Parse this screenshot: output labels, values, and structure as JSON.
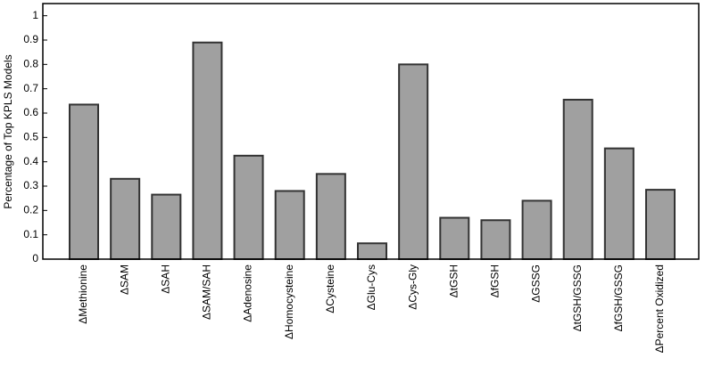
{
  "chart_data": {
    "type": "bar",
    "y_label": "Percentage of Top KPLS Models",
    "categories": [
      "ΔMethionine",
      "ΔSAM",
      "ΔSAH",
      "ΔSAM/SAH",
      "ΔAdenosine",
      "ΔHomocysteine",
      "ΔCysteine",
      "ΔGlu-Cys",
      "ΔCys-Gly",
      "ΔtGSH",
      "ΔfGSH",
      "ΔGSSG",
      "ΔtGSH/GSSG",
      "ΔfGSH/GSSG",
      "ΔPercent Oxidized"
    ],
    "values": [
      0.635,
      0.33,
      0.265,
      0.89,
      0.425,
      0.28,
      0.35,
      0.065,
      0.8,
      0.17,
      0.16,
      0.24,
      0.655,
      0.455,
      0.285
    ],
    "color": "#a0a0a0",
    "ylim": [
      0,
      1.05
    ],
    "yticks": [
      0,
      0.1,
      0.2,
      0.3,
      0.4,
      0.5,
      0.6,
      0.7,
      0.8,
      0.9,
      1
    ]
  }
}
